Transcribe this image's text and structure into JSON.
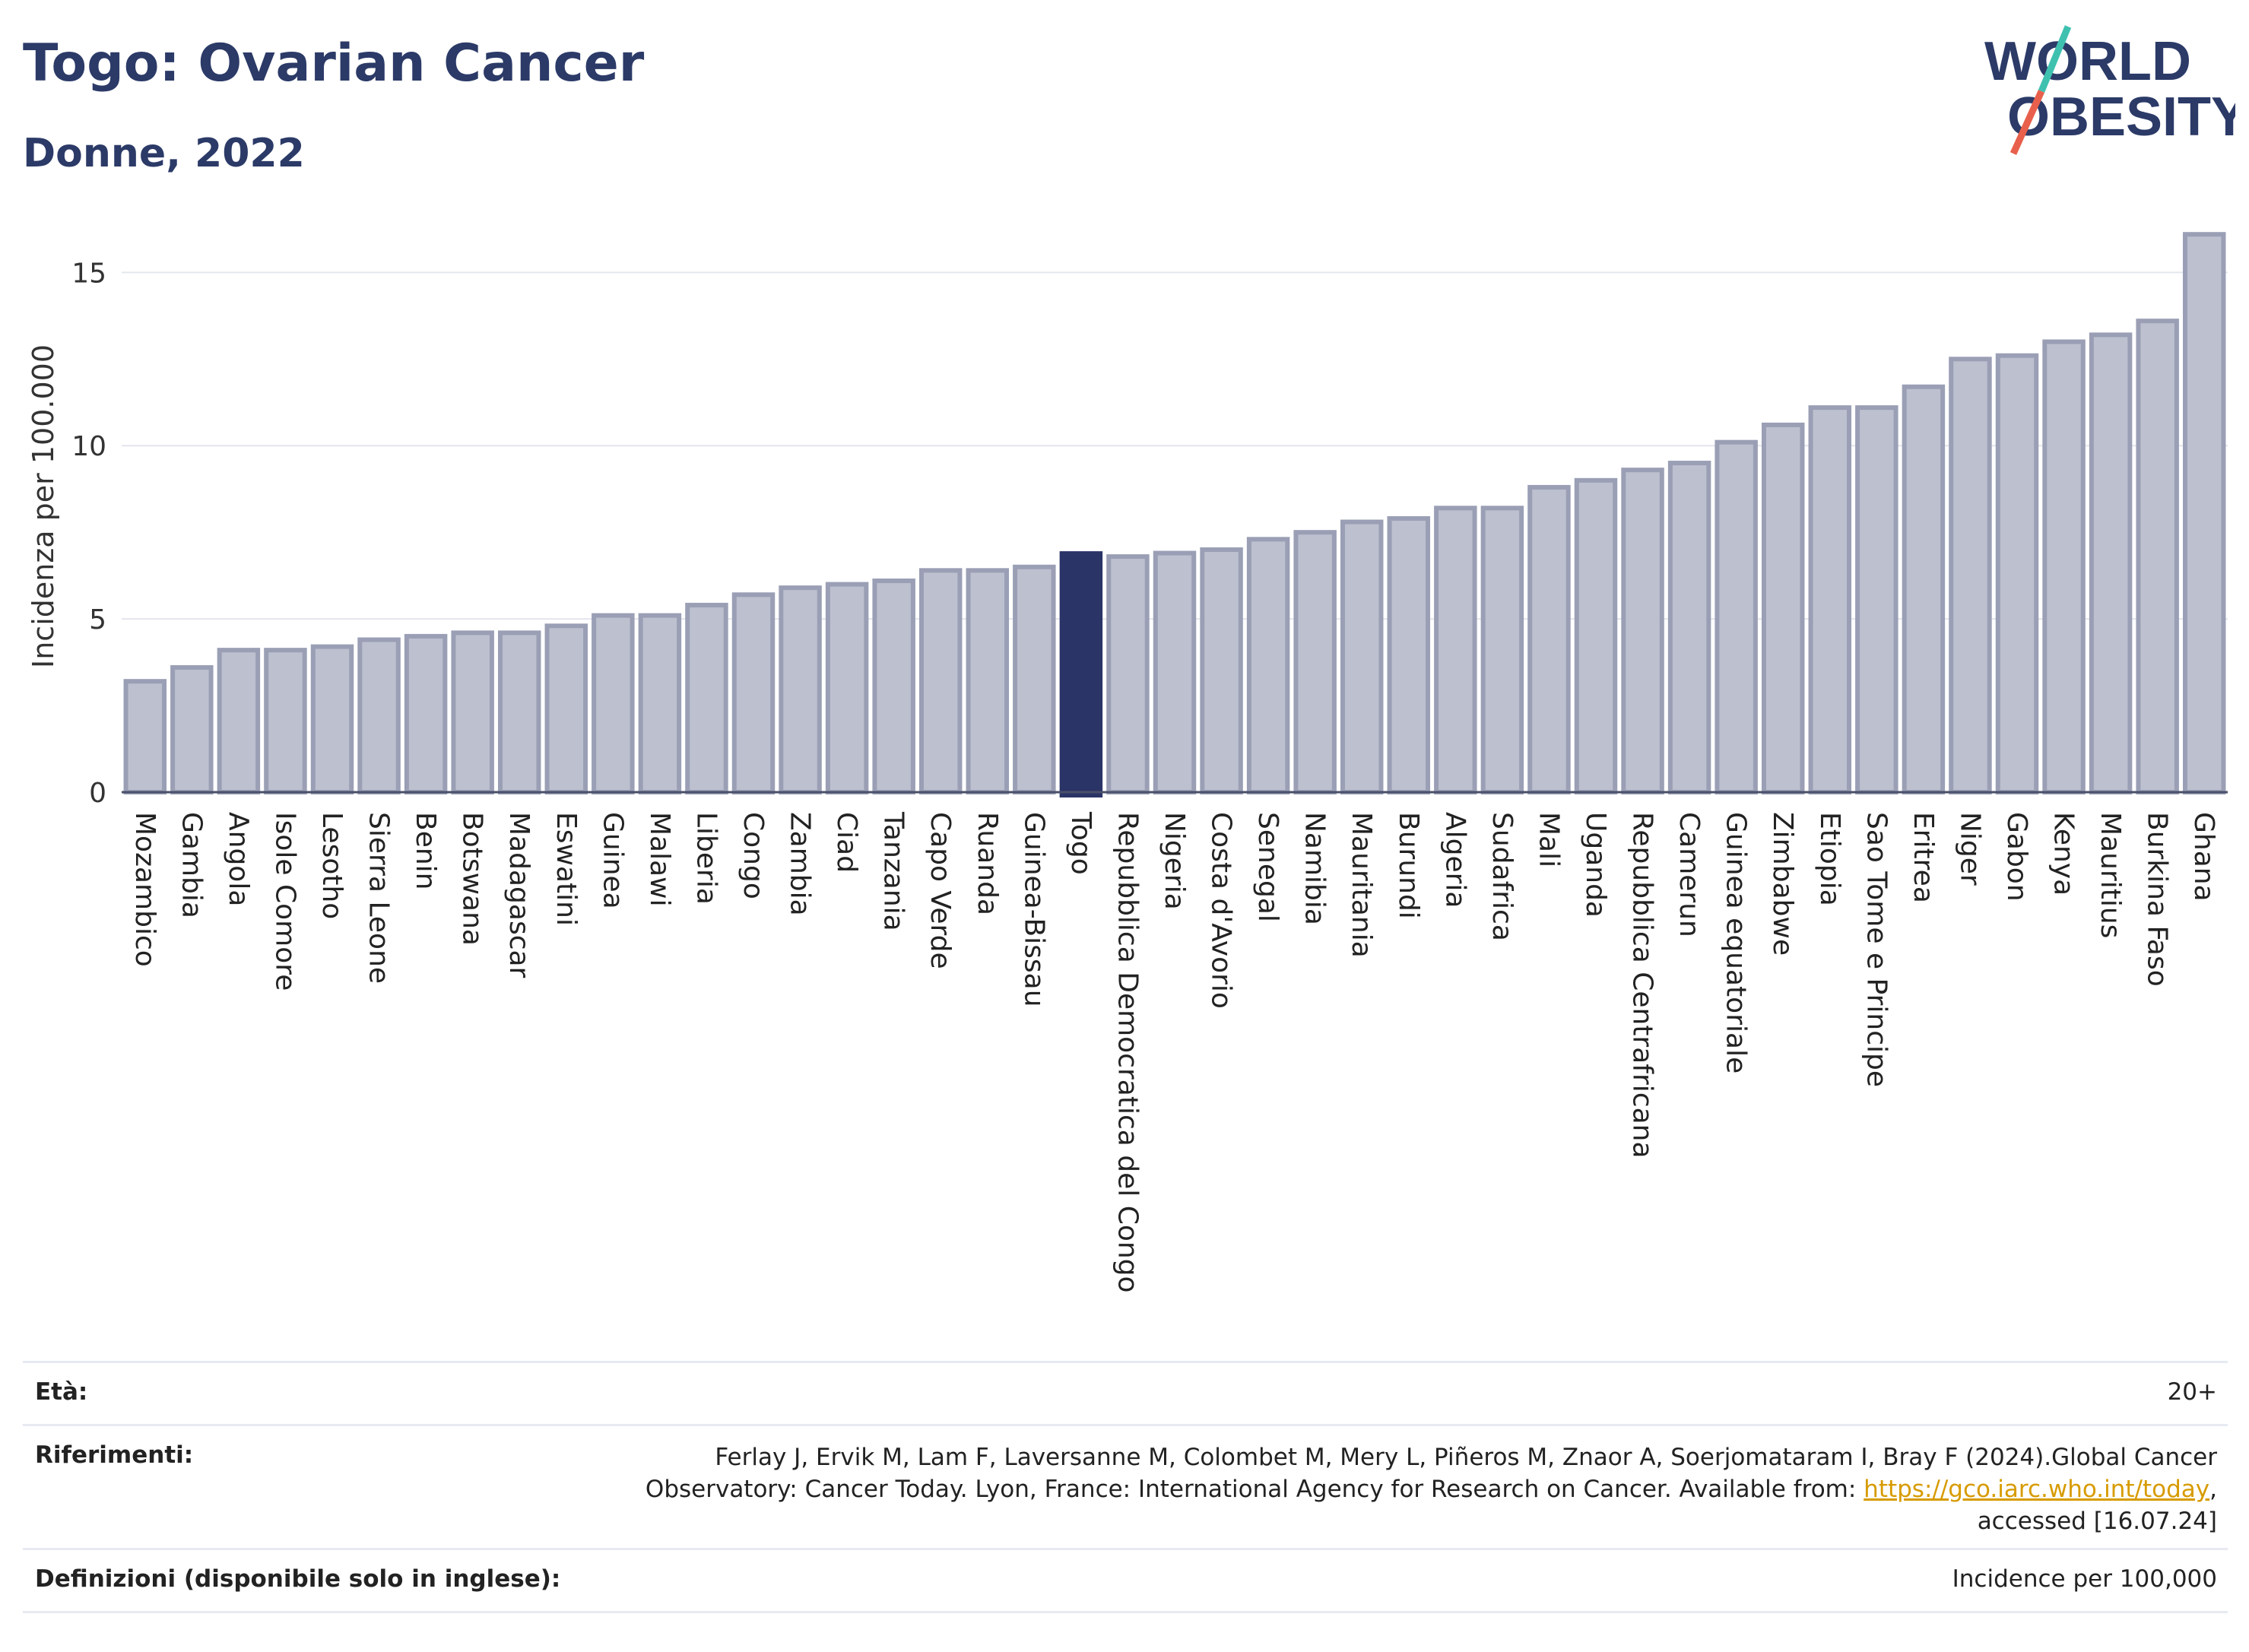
{
  "header": {
    "title": "Togo: Ovarian Cancer",
    "subtitle": "Donne, 2022"
  },
  "logo": {
    "line1": "WORLD",
    "line2": "OBESITY",
    "colors": {
      "text": "#2b3a67",
      "slash_top": "#3fc1b0",
      "slash_bottom": "#e8604c"
    }
  },
  "colors": {
    "bar": "#bcc0cf",
    "bar_border": "#9a9fb5",
    "highlight": "#2b3467",
    "axis": "#4a4f6a",
    "grid": "#e4e6ee"
  },
  "chart_data": {
    "type": "bar",
    "ylabel": "Incidenza per 100.000",
    "xlabel": "",
    "ylim": [
      0,
      16.5
    ],
    "yticks": [
      0,
      5,
      10,
      15
    ],
    "grid": true,
    "highlight": "Togo",
    "categories": [
      "Mozambico",
      "Gambia",
      "Angola",
      "Isole Comore",
      "Lesotho",
      "Sierra Leone",
      "Benin",
      "Botswana",
      "Madagascar",
      "Eswatini",
      "Guinea",
      "Malawi",
      "Liberia",
      "Congo",
      "Zambia",
      "Ciad",
      "Tanzania",
      "Capo Verde",
      "Ruanda",
      "Guinea-Bissau",
      "Togo",
      "Repubblica Democratica del Congo",
      "Nigeria",
      "Costa d'Avorio",
      "Senegal",
      "Namibia",
      "Mauritania",
      "Burundi",
      "Algeria",
      "Sudafrica",
      "Mali",
      "Uganda",
      "Repubblica Centrafricana",
      "Camerun",
      "Guinea equatoriale",
      "Zimbabwe",
      "Etiopia",
      "Sao Tome e Principe",
      "Eritrea",
      "Niger",
      "Gabon",
      "Kenya",
      "Mauritius",
      "Burkina Faso",
      "Ghana"
    ],
    "values": [
      3.2,
      3.6,
      4.1,
      4.1,
      4.2,
      4.4,
      4.5,
      4.6,
      4.6,
      4.8,
      5.1,
      5.1,
      5.4,
      5.7,
      5.9,
      6.0,
      6.1,
      6.4,
      6.4,
      6.5,
      6.8,
      6.8,
      6.9,
      7.0,
      7.3,
      7.5,
      7.8,
      7.9,
      8.2,
      8.2,
      8.8,
      9.0,
      9.3,
      9.5,
      10.1,
      10.6,
      11.1,
      11.1,
      11.7,
      12.5,
      12.6,
      13.0,
      13.2,
      13.6,
      16.1
    ]
  },
  "footer": {
    "age_label": "Età:",
    "age_value": "20+",
    "ref_label": "Riferimenti:",
    "ref_text_1": "Ferlay J, Ervik M, Lam F, Laversanne M, Colombet M, Mery L, Piñeros M, Znaor A, Soerjomataram I, Bray F (2024).Global Cancer Observatory: Cancer Today. Lyon, France: International Agency for Research on Cancer. Available from: ",
    "ref_link": "https://gco.iarc.who.int/today",
    "ref_text_2": ", accessed [16.07.24]",
    "def_label": "Definizioni (disponibile solo in inglese):",
    "def_value": "Incidence per 100,000"
  }
}
